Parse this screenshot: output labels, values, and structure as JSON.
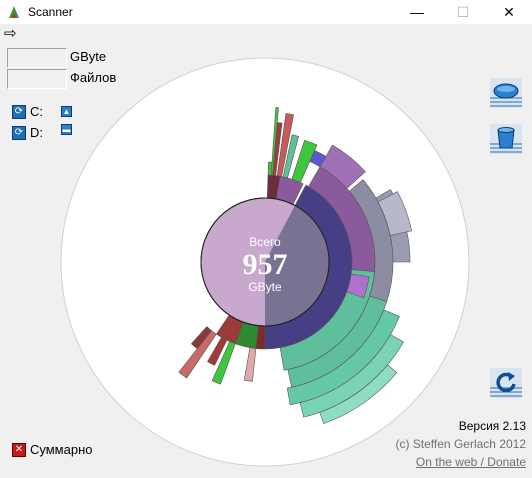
{
  "window": {
    "title": "Scanner",
    "icon": "scanner-app-icon",
    "controls": {
      "minimize": "—",
      "maximize": "☐",
      "close": "✕"
    }
  },
  "menubar": {
    "arrow_icon": "arrow-right-icon"
  },
  "stats": {
    "size_value": "",
    "size_unit": "GByte",
    "files_value": "",
    "files_label": "Файлов"
  },
  "drives": [
    {
      "label": "C:",
      "action": "up",
      "action_glyph": "▲"
    },
    {
      "label": "D:",
      "action": "minus",
      "action_glyph": "▬"
    }
  ],
  "center": {
    "top_label": "Всего",
    "value": "957",
    "unit": "GByte"
  },
  "side_buttons": [
    "disk-icon",
    "trash-icon",
    "refresh-icon"
  ],
  "summary": {
    "label": "Суммарно"
  },
  "footer": {
    "version": "Версия 2.13",
    "copyright": "(c) Steffen Gerlach 2012",
    "link": "On the web / Donate"
  },
  "colors": {
    "outer_circle": "#ffffff",
    "center_light": "#c8a8cc",
    "center_dark": "#7a7292",
    "ring_blue": "#473f85",
    "ring_purple": "#8a5a9c",
    "ring_teal": "#5fbf9c",
    "ring_grey": "#8c8ca3",
    "ring_green": "#3ec63e",
    "ring_red": "#a23a3a"
  }
}
